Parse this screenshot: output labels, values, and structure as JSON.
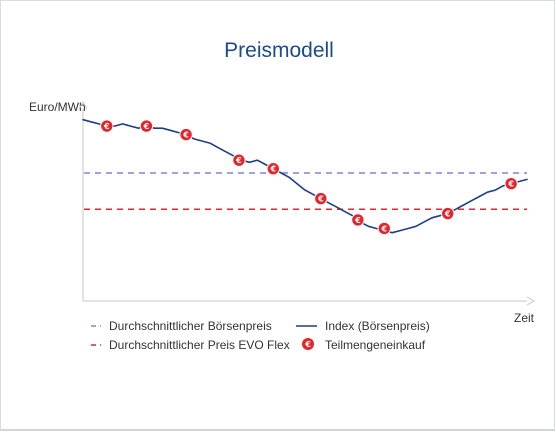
{
  "chart_data": {
    "type": "line",
    "title": "Preismodell",
    "ylabel": "Euro/MWh",
    "xlabel": "Zeit",
    "x_ticks": [],
    "y_ticks": [],
    "grid": false,
    "legend_position": "bottom",
    "series": [
      {
        "name": "Index (Börsenpreis)",
        "kind": "line",
        "color": "#1d3f85",
        "points": [
          [
            0,
            85
          ],
          [
            3,
            84
          ],
          [
            6,
            83
          ],
          [
            9,
            82
          ],
          [
            12,
            82
          ],
          [
            15,
            83
          ],
          [
            18,
            82
          ],
          [
            21,
            81
          ],
          [
            24,
            82
          ],
          [
            27,
            81
          ],
          [
            30,
            81
          ],
          [
            33,
            80
          ],
          [
            36,
            79
          ],
          [
            39,
            78
          ],
          [
            42,
            76
          ],
          [
            45,
            75
          ],
          [
            48,
            74
          ],
          [
            51,
            72
          ],
          [
            54,
            70
          ],
          [
            57,
            68
          ],
          [
            60,
            66
          ],
          [
            63,
            65
          ],
          [
            66,
            66
          ],
          [
            69,
            64
          ],
          [
            72,
            62
          ],
          [
            75,
            60
          ],
          [
            78,
            58
          ],
          [
            81,
            55
          ],
          [
            84,
            52
          ],
          [
            87,
            50
          ],
          [
            90,
            48
          ],
          [
            93,
            46
          ],
          [
            96,
            44
          ],
          [
            99,
            42
          ],
          [
            102,
            40
          ],
          [
            105,
            37
          ],
          [
            108,
            35
          ],
          [
            111,
            34
          ],
          [
            114,
            33
          ],
          [
            117,
            32
          ],
          [
            120,
            33
          ],
          [
            123,
            34
          ],
          [
            126,
            35
          ],
          [
            129,
            37
          ],
          [
            132,
            39
          ],
          [
            135,
            40
          ],
          [
            138,
            41
          ],
          [
            141,
            43
          ],
          [
            144,
            45
          ],
          [
            147,
            47
          ],
          [
            150,
            49
          ],
          [
            153,
            51
          ],
          [
            156,
            52
          ],
          [
            159,
            54
          ],
          [
            162,
            55
          ],
          [
            165,
            56
          ],
          [
            168,
            57
          ]
        ]
      },
      {
        "name": "Durchschnittlicher Börsenpreis",
        "kind": "hline",
        "style": "dashed",
        "color": "#7d86d6",
        "y": 60
      },
      {
        "name": "Durchschnittlicher Preis EVO Flex",
        "kind": "hline",
        "style": "dashed",
        "color": "#e3262d",
        "y": 43
      },
      {
        "name": "Teilmengeneinkauf",
        "kind": "marker",
        "color": "#e3262d",
        "symbol": "€",
        "points": [
          [
            9,
            82
          ],
          [
            24,
            82
          ],
          [
            39,
            78
          ],
          [
            59,
            66
          ],
          [
            72,
            62
          ],
          [
            90,
            48
          ],
          [
            104,
            38
          ],
          [
            114,
            34
          ],
          [
            138,
            41
          ],
          [
            162,
            55
          ]
        ]
      }
    ],
    "legend": [
      {
        "label": "Durchschnittlicher Börsenpreis",
        "symbol": "dash",
        "color": "#7d86d6"
      },
      {
        "label": "Index (Börsenpreis)",
        "symbol": "line",
        "color": "#1d3f85"
      },
      {
        "label": "Durchschnittlicher Preis EVO Flex",
        "symbol": "dash",
        "color": "#e3262d"
      },
      {
        "label": "Teilmengeneinkauf",
        "symbol": "euro",
        "color": "#e3262d"
      }
    ]
  }
}
